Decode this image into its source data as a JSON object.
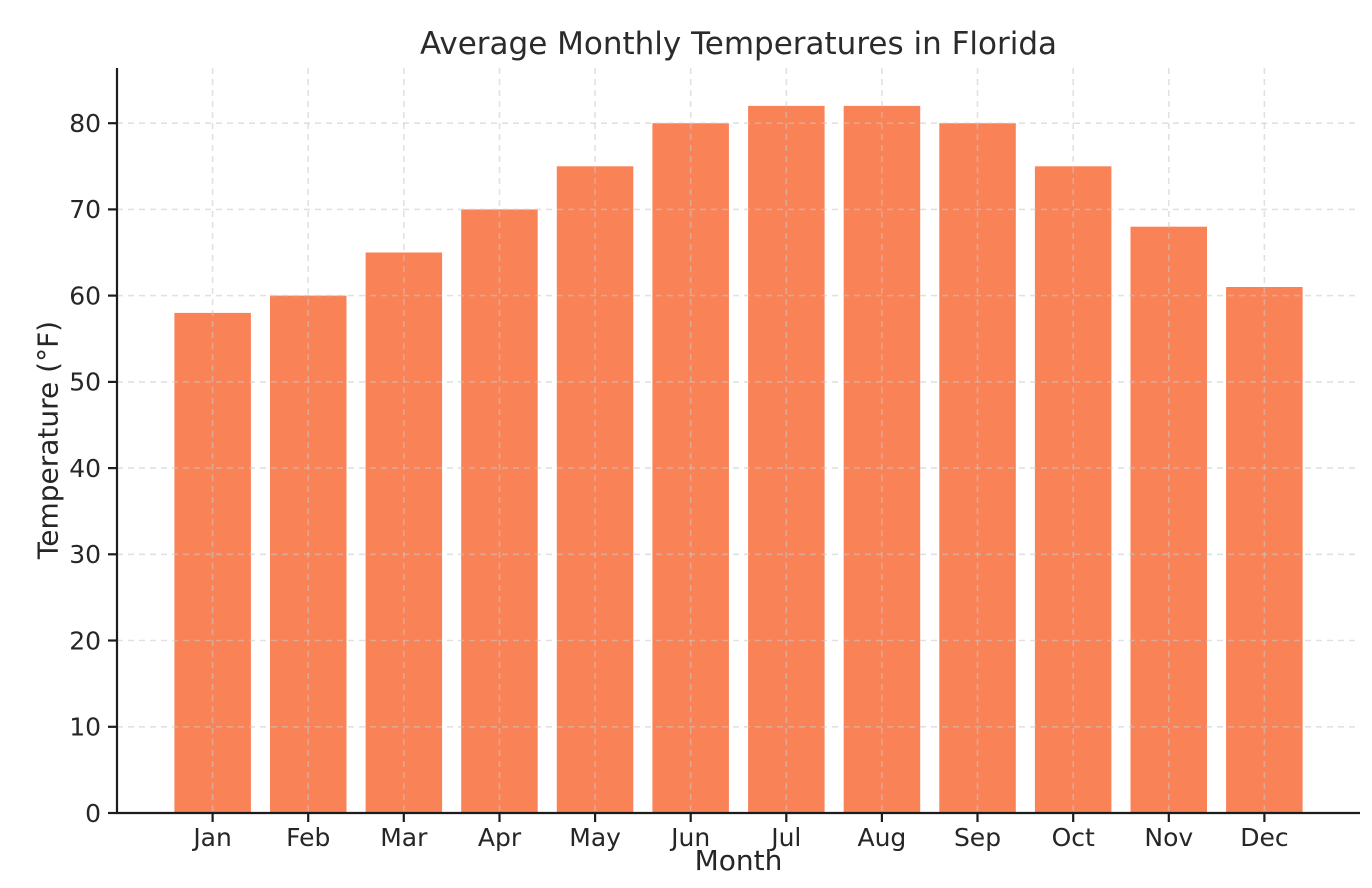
{
  "chart_data": {
    "type": "bar",
    "title": "Average Monthly Temperatures in Florida",
    "xlabel": "Month",
    "ylabel": "Temperature (°F)",
    "categories": [
      "Jan",
      "Feb",
      "Mar",
      "Apr",
      "May",
      "Jun",
      "Jul",
      "Aug",
      "Sep",
      "Oct",
      "Nov",
      "Dec"
    ],
    "values": [
      58,
      60,
      65,
      70,
      75,
      80,
      82,
      82,
      80,
      75,
      68,
      61
    ],
    "ylim": [
      0,
      86.4
    ],
    "yticks": [
      0,
      10,
      20,
      30,
      40,
      50,
      60,
      70,
      80
    ],
    "grid": true,
    "grid_style": "dashed",
    "legend": false,
    "colors": {
      "bar": "#f98257",
      "grid": "#c8c8c8",
      "spine": "#1c1c1c",
      "text": "#262626",
      "background": "#ffffff"
    }
  }
}
